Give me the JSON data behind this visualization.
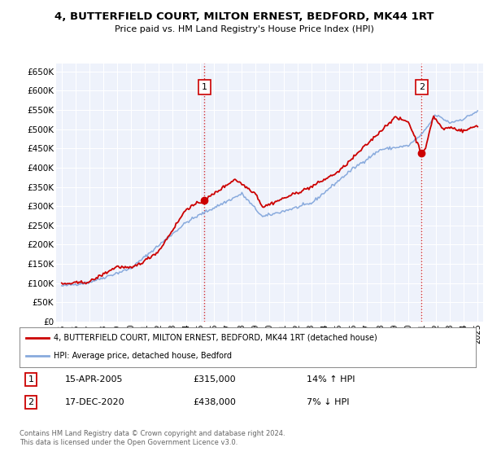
{
  "title": "4, BUTTERFIELD COURT, MILTON ERNEST, BEDFORD, MK44 1RT",
  "subtitle": "Price paid vs. HM Land Registry's House Price Index (HPI)",
  "ylim": [
    0,
    670000
  ],
  "yticks": [
    0,
    50000,
    100000,
    150000,
    200000,
    250000,
    300000,
    350000,
    400000,
    450000,
    500000,
    550000,
    600000,
    650000
  ],
  "ytick_labels": [
    "£0",
    "£50K",
    "£100K",
    "£150K",
    "£200K",
    "£250K",
    "£300K",
    "£350K",
    "£400K",
    "£450K",
    "£500K",
    "£550K",
    "£600K",
    "£650K"
  ],
  "bg_color": "#eef2fb",
  "grid_color": "#ffffff",
  "sale1_date_num": 2005.29,
  "sale1_price": 315000,
  "sale2_date_num": 2020.96,
  "sale2_price": 438000,
  "legend_line1": "4, BUTTERFIELD COURT, MILTON ERNEST, BEDFORD, MK44 1RT (detached house)",
  "legend_line2": "HPI: Average price, detached house, Bedford",
  "annotation1_date": "15-APR-2005",
  "annotation1_price": "£315,000",
  "annotation1_hpi": "14% ↑ HPI",
  "annotation2_date": "17-DEC-2020",
  "annotation2_price": "£438,000",
  "annotation2_hpi": "7% ↓ HPI",
  "footer": "Contains HM Land Registry data © Crown copyright and database right 2024.\nThis data is licensed under the Open Government Licence v3.0.",
  "line_color_red": "#cc0000",
  "line_color_blue": "#88aadd",
  "vline_color": "#cc0000",
  "xlim_left": 1994.6,
  "xlim_right": 2025.4
}
